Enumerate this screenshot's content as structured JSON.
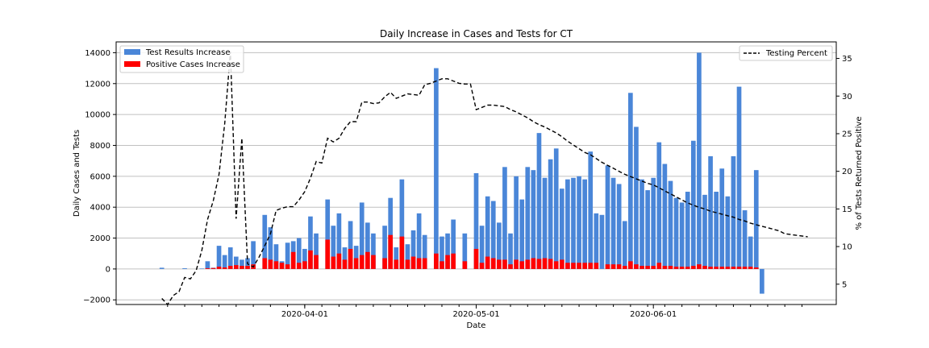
{
  "chart_data": {
    "type": "bar",
    "title": "Daily Increase in Cases and Tests for CT",
    "xlabel": "Date",
    "ylabel": "Daily Cases and Tests",
    "y2label": "% of Tests Returned Positive",
    "ylim": [
      -2300,
      14700
    ],
    "y2lim": [
      2.3,
      37.2
    ],
    "yticks": [
      -2000,
      0,
      2000,
      4000,
      6000,
      8000,
      10000,
      12000,
      14000
    ],
    "yticklabels": [
      "−2000",
      "0",
      "2000",
      "4000",
      "6000",
      "8000",
      "10000",
      "12000",
      "14000"
    ],
    "y2ticks": [
      5,
      10,
      15,
      20,
      25,
      30,
      35
    ],
    "y2ticklabels": [
      "5",
      "10",
      "15",
      "20",
      "25",
      "30",
      "35"
    ],
    "x_start": "2020-03-06",
    "x_end": "2020-06-28",
    "xlim": [
      "2020-02-28",
      "2020-07-03"
    ],
    "xticks": [
      "2020-04-01",
      "2020-05-01",
      "2020-06-01"
    ],
    "xticklabels": [
      "2020-04-01",
      "2020-05-01",
      "2020-06-01"
    ],
    "grid": "horizontal",
    "legend_left_placement": "top-left",
    "legend_right_placement": "top-right",
    "series": [
      {
        "name": "Test Results Increase",
        "kind": "bar",
        "color": "#4a86d8",
        "values": [
          0,
          80,
          0,
          0,
          0,
          50,
          0,
          0,
          30,
          500,
          80,
          1500,
          900,
          1400,
          800,
          600,
          700,
          1800,
          0,
          3500,
          2700,
          1600,
          500,
          1700,
          1800,
          2000,
          1300,
          3400,
          2300,
          0,
          4500,
          2800,
          3600,
          1400,
          3100,
          1500,
          4300,
          3000,
          2300,
          0,
          2800,
          4600,
          1400,
          5800,
          1600,
          2500,
          3600,
          2200,
          0,
          13000,
          2100,
          2300,
          3200,
          0,
          2300,
          0,
          6200,
          2800,
          4700,
          4400,
          3000,
          6600,
          2300,
          6000,
          4500,
          6600,
          6400,
          8800,
          5900,
          7100,
          7800,
          5200,
          5800,
          5900,
          6000,
          5800,
          7600,
          3600,
          3500,
          6700,
          5900,
          5500,
          3100,
          11400,
          9200,
          5800,
          5100,
          5900,
          8200,
          6800,
          5700,
          4600,
          4300,
          5000,
          8300,
          14000,
          4800,
          7300,
          5000,
          6500,
          4700,
          7300,
          11800,
          3800,
          2100,
          6400,
          -1600
        ]
      },
      {
        "name": "Positive Cases Increase",
        "kind": "bar",
        "color": "#ff0000",
        "values": [
          0,
          0,
          0,
          0,
          0,
          0,
          0,
          0,
          0,
          50,
          60,
          150,
          100,
          200,
          250,
          200,
          200,
          300,
          0,
          700,
          600,
          500,
          400,
          300,
          1100,
          400,
          500,
          1200,
          900,
          0,
          1900,
          800,
          1000,
          600,
          1300,
          700,
          900,
          1100,
          900,
          0,
          700,
          2200,
          600,
          2100,
          600,
          800,
          700,
          700,
          0,
          1000,
          500,
          900,
          1000,
          0,
          500,
          0,
          1300,
          400,
          800,
          700,
          600,
          600,
          300,
          600,
          500,
          600,
          700,
          650,
          700,
          650,
          500,
          600,
          400,
          400,
          400,
          400,
          400,
          400,
          0,
          300,
          300,
          300,
          200,
          500,
          300,
          200,
          200,
          200,
          400,
          200,
          200,
          150,
          150,
          150,
          200,
          300,
          200,
          150,
          150,
          150,
          150,
          150,
          150,
          150,
          150,
          100,
          0
        ]
      },
      {
        "name": "Testing Percent",
        "kind": "line",
        "color": "#000000",
        "dash": true,
        "x_start": "2020-03-07",
        "values": [
          3.1,
          2.3,
          3.5,
          4.0,
          5.9,
          5.7,
          6.8,
          9.5,
          13.6,
          16.1,
          19.6,
          26.4,
          35.9,
          13.7,
          24.4,
          7.7,
          7.3,
          8.6,
          10.1,
          11.7,
          14.8,
          15.1,
          15.3,
          15.3,
          16.2,
          17.3,
          19.1,
          21.3,
          21.1,
          24.4,
          23.9,
          24.4,
          25.7,
          26.6,
          26.6,
          29.2,
          29.2,
          29.0,
          29.1,
          29.9,
          30.5,
          29.7,
          30.0,
          30.3,
          30.2,
          30.1,
          31.5,
          31.7,
          32.0,
          32.3,
          32.3,
          32.0,
          31.7,
          31.6,
          31.6,
          28.2,
          28.5,
          28.8,
          28.8,
          28.7,
          28.6,
          28.2,
          27.9,
          27.5,
          27.1,
          26.6,
          26.2,
          25.9,
          25.5,
          25.1,
          24.6,
          24.0,
          23.5,
          23.0,
          22.5,
          22.2,
          21.7,
          21.2,
          20.8,
          20.4,
          20.0,
          19.6,
          19.3,
          19.0,
          18.7,
          18.4,
          18.2,
          17.8,
          17.4,
          17.0,
          16.6,
          16.2,
          15.8,
          15.5,
          15.2,
          15.0,
          14.7,
          14.5,
          14.3,
          14.1,
          13.9,
          13.6,
          13.4,
          13.1,
          12.9,
          12.7,
          12.5,
          12.3,
          12.1,
          11.7,
          11.6,
          11.5,
          11.4,
          11.3
        ]
      }
    ]
  }
}
